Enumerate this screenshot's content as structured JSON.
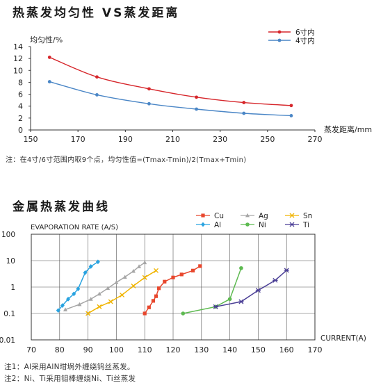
{
  "chart_data": [
    {
      "type": "line",
      "title": "热蒸发均匀性 VS蒸发距离",
      "ylabel": "均匀性/%",
      "xlabel": "蒸发距离/mm",
      "x_ticks": [
        150,
        170,
        190,
        210,
        230,
        250,
        270
      ],
      "y_ticks": [
        0,
        2,
        4,
        6,
        8,
        10,
        12,
        14
      ],
      "xlim": [
        150,
        270
      ],
      "ylim": [
        0,
        14
      ],
      "grid": false,
      "legend_position": "top-right",
      "series": [
        {
          "name": "6寸内",
          "color": "#d6262b",
          "x": [
            158,
            178,
            200,
            220,
            240,
            260
          ],
          "y": [
            12.2,
            8.9,
            6.9,
            5.5,
            4.6,
            4.1
          ]
        },
        {
          "name": "4寸内",
          "color": "#4a86c6",
          "x": [
            158,
            178,
            200,
            220,
            240,
            260
          ],
          "y": [
            8.1,
            5.9,
            4.4,
            3.5,
            2.8,
            2.4
          ]
        }
      ],
      "note": "注：在4寸/6寸范围内取9个点，均匀性值=(Tmax-Tmin)/2(Tmax+Tmin)"
    },
    {
      "type": "line",
      "title": "金属热蒸发曲线",
      "ylabel": "EVAPORATION RATE (A/S)",
      "xlabel": "CURRENT(A)",
      "x_ticks": [
        70,
        80,
        90,
        100,
        110,
        120,
        130,
        140,
        150,
        160,
        170
      ],
      "y_ticks": [
        "100",
        "10",
        "1",
        "0.1",
        "0.01"
      ],
      "xlim": [
        70,
        170
      ],
      "ylim": [
        0.01,
        100
      ],
      "y_scale": "log",
      "grid": true,
      "legend_position": "top",
      "series": [
        {
          "name": "Cu",
          "color": "#e8472d",
          "marker": "square",
          "x": [
            110,
            111.5,
            113,
            114,
            115,
            117,
            120,
            123,
            127,
            129.5
          ],
          "y": [
            0.1,
            0.17,
            0.3,
            0.45,
            0.9,
            1.6,
            2.3,
            3.0,
            4.2,
            6.2
          ]
        },
        {
          "name": "Ag",
          "color": "#a6a6a6",
          "marker": "triangle",
          "x": [
            82,
            87,
            91,
            94,
            97,
            100,
            103,
            106,
            108,
            110
          ],
          "y": [
            0.14,
            0.22,
            0.35,
            0.55,
            0.9,
            1.5,
            2.4,
            4.0,
            6.0,
            8.5
          ]
        },
        {
          "name": "Sn",
          "color": "#f0b400",
          "marker": "x",
          "x": [
            90,
            94,
            98,
            102,
            106,
            110,
            114
          ],
          "y": [
            0.1,
            0.18,
            0.28,
            0.5,
            1.1,
            2.3,
            4.2
          ]
        },
        {
          "name": "Al",
          "color": "#29a3e0",
          "marker": "diamond",
          "x": [
            79.5,
            81,
            83,
            85,
            86.5,
            89,
            91,
            93.5
          ],
          "y": [
            0.13,
            0.2,
            0.35,
            0.55,
            0.85,
            3.5,
            6.0,
            9.0
          ]
        },
        {
          "name": "Ni",
          "color": "#5dba50",
          "marker": "circle",
          "x": [
            123.5,
            135,
            140,
            144
          ],
          "y": [
            0.1,
            0.18,
            0.35,
            5.2
          ]
        },
        {
          "name": "Ti",
          "color": "#4b3f96",
          "marker": "star",
          "x": [
            135,
            144,
            150,
            156,
            160
          ],
          "y": [
            0.18,
            0.28,
            0.75,
            1.8,
            4.3
          ]
        }
      ],
      "notes": [
        "注1：Al采用AlN坩埚外缠绕钨丝蒸发。",
        "注2：Ni、Ti采用钼棒缠绕Ni、Ti丝蒸发"
      ]
    }
  ]
}
